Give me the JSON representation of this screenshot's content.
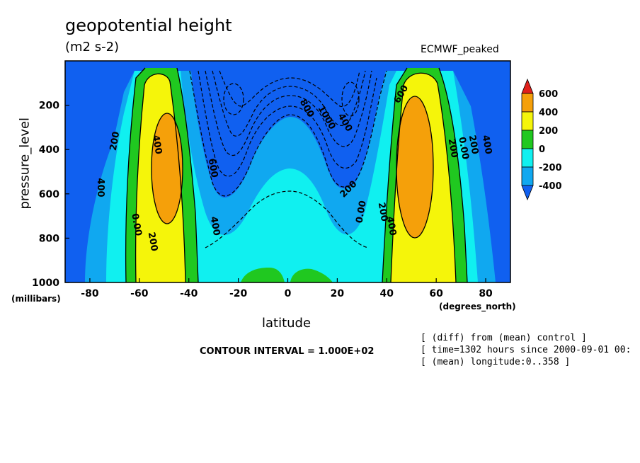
{
  "title": "geopotential height",
  "units": "(m2 s-2)",
  "model_label": "ECMWF_peaked",
  "contour_interval": "CONTOUR INTERVAL = 1.000E+02",
  "meta_lines": [
    "[ (diff) from (mean) control ]",
    "[ time=1302 hours since 2000-09-01 00:",
    "[ (mean) longitude:0..358 ]"
  ],
  "chart_data": {
    "type": "contour",
    "title": "geopotential height",
    "subtitle": "(m2 s-2)",
    "xlabel": "latitude",
    "xunits": "(degrees_north)",
    "ylabel": "pressure_level",
    "yunits": "(millibars)",
    "xlim": [
      -90,
      90
    ],
    "ylim": [
      1000,
      0
    ],
    "xticks": [
      -80,
      -60,
      -40,
      -20,
      0,
      20,
      40,
      60,
      80
    ],
    "yticks": [
      200,
      400,
      600,
      800,
      1000
    ],
    "colorbar": {
      "levels": [
        600,
        400,
        200,
        0,
        -200,
        -400
      ],
      "colors": [
        "#e0201b",
        "#f5a00a",
        "#f5f50a",
        "#20c820",
        "#10f0f0",
        "#10a8f0",
        "#1060f0"
      ]
    },
    "contour_labels": [
      "400",
      "200",
      "400",
      "0.00",
      "200",
      "400",
      "600",
      "800",
      "1000",
      "400",
      "200",
      "0.00",
      "200",
      "400",
      "200",
      "0.00",
      "200",
      "400",
      "600"
    ]
  }
}
